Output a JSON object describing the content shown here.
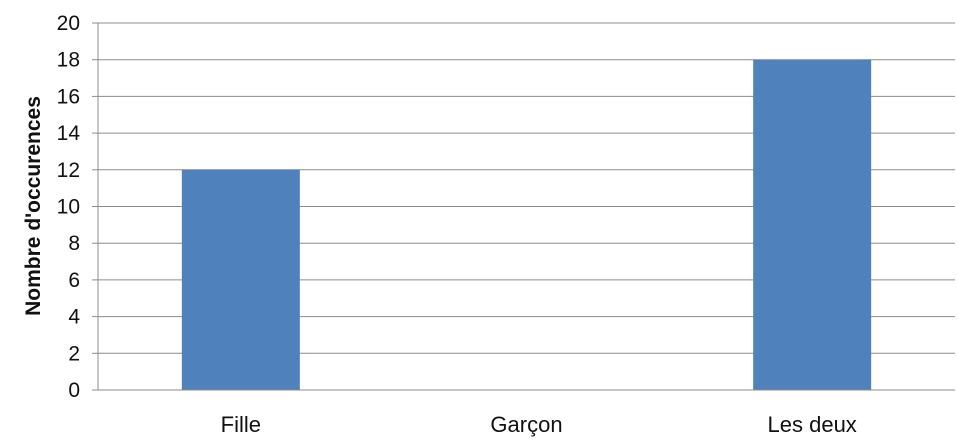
{
  "chart_data": {
    "type": "bar",
    "title": "",
    "xlabel": "",
    "ylabel": "Nombre d'occurences",
    "categories": [
      "Fille",
      "Garçon",
      "Les deux"
    ],
    "values": [
      12,
      0,
      18
    ],
    "ylim": [
      0,
      20
    ],
    "yticks": [
      "0",
      "2",
      "4",
      "6",
      "8",
      "10",
      "12",
      "14",
      "16",
      "18",
      "20"
    ],
    "grid": true,
    "legend": "none",
    "colors": {
      "bar": "#4f81bd",
      "grid": "#8c8c8c",
      "axis": "#8c8c8c"
    }
  }
}
